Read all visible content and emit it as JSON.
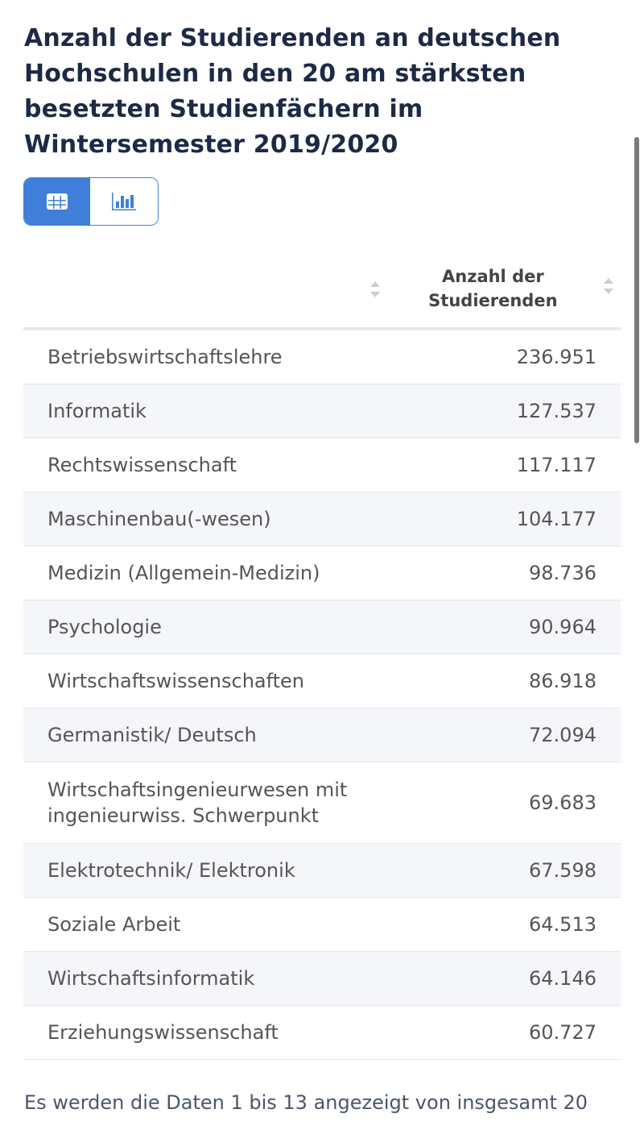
{
  "title": "Anzahl der Studierenden an deutschen Hochschulen in den 20 am stärksten besetzten Studienfächern im Wintersemester 2019/2020",
  "view_toggle": {
    "active": "table",
    "icons": [
      "table-icon",
      "bar-chart-icon"
    ]
  },
  "colors": {
    "accent": "#3f7fd9",
    "title": "#1c2a45",
    "alt_row": "#f5f6f9"
  },
  "table": {
    "headers": [
      "",
      "Anzahl der Studierenden"
    ],
    "rows": [
      {
        "label": "Betriebswirtschaftslehre",
        "value": "236.951"
      },
      {
        "label": "Informatik",
        "value": "127.537"
      },
      {
        "label": "Rechtswissenschaft",
        "value": "117.117"
      },
      {
        "label": "Maschinenbau(-wesen)",
        "value": "104.177"
      },
      {
        "label": "Medizin (Allgemein-Medizin)",
        "value": "98.736"
      },
      {
        "label": "Psychologie",
        "value": "90.964"
      },
      {
        "label": "Wirtschaftswissenschaften",
        "value": "86.918"
      },
      {
        "label": "Germanistik/ Deutsch",
        "value": "72.094"
      },
      {
        "label": "Wirtschaftsingenieurwesen mit ingenieurwiss. Schwerpunkt",
        "value": "69.683"
      },
      {
        "label": "Elektrotechnik/ Elektronik",
        "value": "67.598"
      },
      {
        "label": "Soziale Arbeit",
        "value": "64.513"
      },
      {
        "label": "Wirtschaftsinformatik",
        "value": "64.146"
      },
      {
        "label": "Erziehungswissenschaft",
        "value": "60.727"
      }
    ]
  },
  "footer": "Es werden die Daten 1 bis 13 angezeigt von insgesamt 20"
}
